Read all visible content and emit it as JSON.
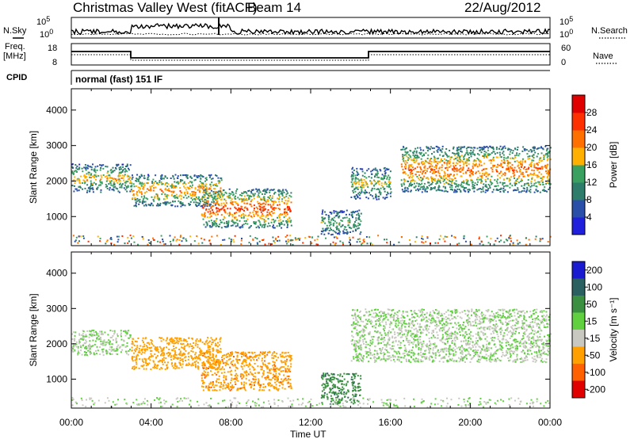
{
  "header": {
    "title": "Christmas Valley West (fitACF)",
    "beam": "Beam 14",
    "date": "22/Aug/2012"
  },
  "top_panels": {
    "nsky_label": "N.Sky",
    "nsearch_label": "N.Search",
    "noise_ticks": [
      "10^5",
      "10^0"
    ],
    "freq_label_1": "Freq.",
    "freq_label_2": "[MHz]",
    "freq_ticks": [
      "18",
      "8"
    ],
    "nave_label": "Nave",
    "nave_ticks": [
      "60",
      "0"
    ],
    "cpid_label": "CPID",
    "mode_text": "normal (fast) 151 IF"
  },
  "chart_data": [
    {
      "type": "heatmap",
      "name": "power",
      "ylabel": "Slant Range [km]",
      "xlabel": "Time UT",
      "ylim": [
        180,
        4600
      ],
      "xlim": [
        0,
        24
      ],
      "y_ticks": [
        1000,
        2000,
        3000,
        4000
      ],
      "x_ticks": [
        "00:00",
        "04:00",
        "08:00",
        "12:00",
        "16:00",
        "20:00",
        "00:00"
      ],
      "colorbar": {
        "label": "Power [dB]",
        "ticks": [
          4,
          8,
          12,
          16,
          20,
          24,
          28
        ],
        "range": [
          0,
          30
        ],
        "colors": [
          "#1f1fdc",
          "#2a4fa8",
          "#2e7d6b",
          "#3aa060",
          "#ffb000",
          "#ff7000",
          "#ff3000",
          "#e00000"
        ]
      },
      "bands": [
        {
          "t0": 0.0,
          "t1": 3.0,
          "r0": 1700,
          "r1": 2500,
          "level": 18
        },
        {
          "t0": 3.0,
          "t1": 7.5,
          "r0": 1300,
          "r1": 2200,
          "level": 20
        },
        {
          "t0": 6.5,
          "t1": 11.0,
          "r0": 700,
          "r1": 1800,
          "level": 24
        },
        {
          "t0": 12.5,
          "t1": 14.5,
          "r0": 500,
          "r1": 1200,
          "level": 14
        },
        {
          "t0": 14.0,
          "t1": 16.0,
          "r0": 1500,
          "r1": 2400,
          "level": 16
        },
        {
          "t0": 16.5,
          "t1": 24.0,
          "r0": 1700,
          "r1": 3000,
          "level": 22
        }
      ]
    },
    {
      "type": "heatmap",
      "name": "velocity",
      "ylabel": "Slant Range [km]",
      "xlabel": "Time UT",
      "ylim": [
        180,
        4600
      ],
      "xlim": [
        0,
        24
      ],
      "y_ticks": [
        1000,
        2000,
        3000,
        4000
      ],
      "x_ticks": [
        "00:00",
        "04:00",
        "08:00",
        "12:00",
        "16:00",
        "20:00",
        "00:00"
      ],
      "colorbar": {
        "label": "Velocity [m s⁻¹]",
        "ticks": [
          "200",
          "100",
          "50",
          "15",
          "-15",
          "-50",
          "-100",
          "-200"
        ],
        "colors": [
          "#1a1ad0",
          "#2a6060",
          "#3a9040",
          "#60d040",
          "#c8c8c0",
          "#ffa000",
          "#ff6000",
          "#e00000"
        ]
      },
      "bands": [
        {
          "t0": 0.0,
          "t1": 3.0,
          "r0": 1700,
          "r1": 2400,
          "vel": 0
        },
        {
          "t0": 3.0,
          "t1": 7.5,
          "r0": 1300,
          "r1": 2200,
          "vel": -50
        },
        {
          "t0": 6.5,
          "t1": 11.0,
          "r0": 700,
          "r1": 1800,
          "vel": -60
        },
        {
          "t0": 12.5,
          "t1": 14.5,
          "r0": 300,
          "r1": 1200,
          "vel": 60
        },
        {
          "t0": 14.0,
          "t1": 24.0,
          "r0": 1500,
          "r1": 3000,
          "vel": 0
        }
      ]
    }
  ]
}
